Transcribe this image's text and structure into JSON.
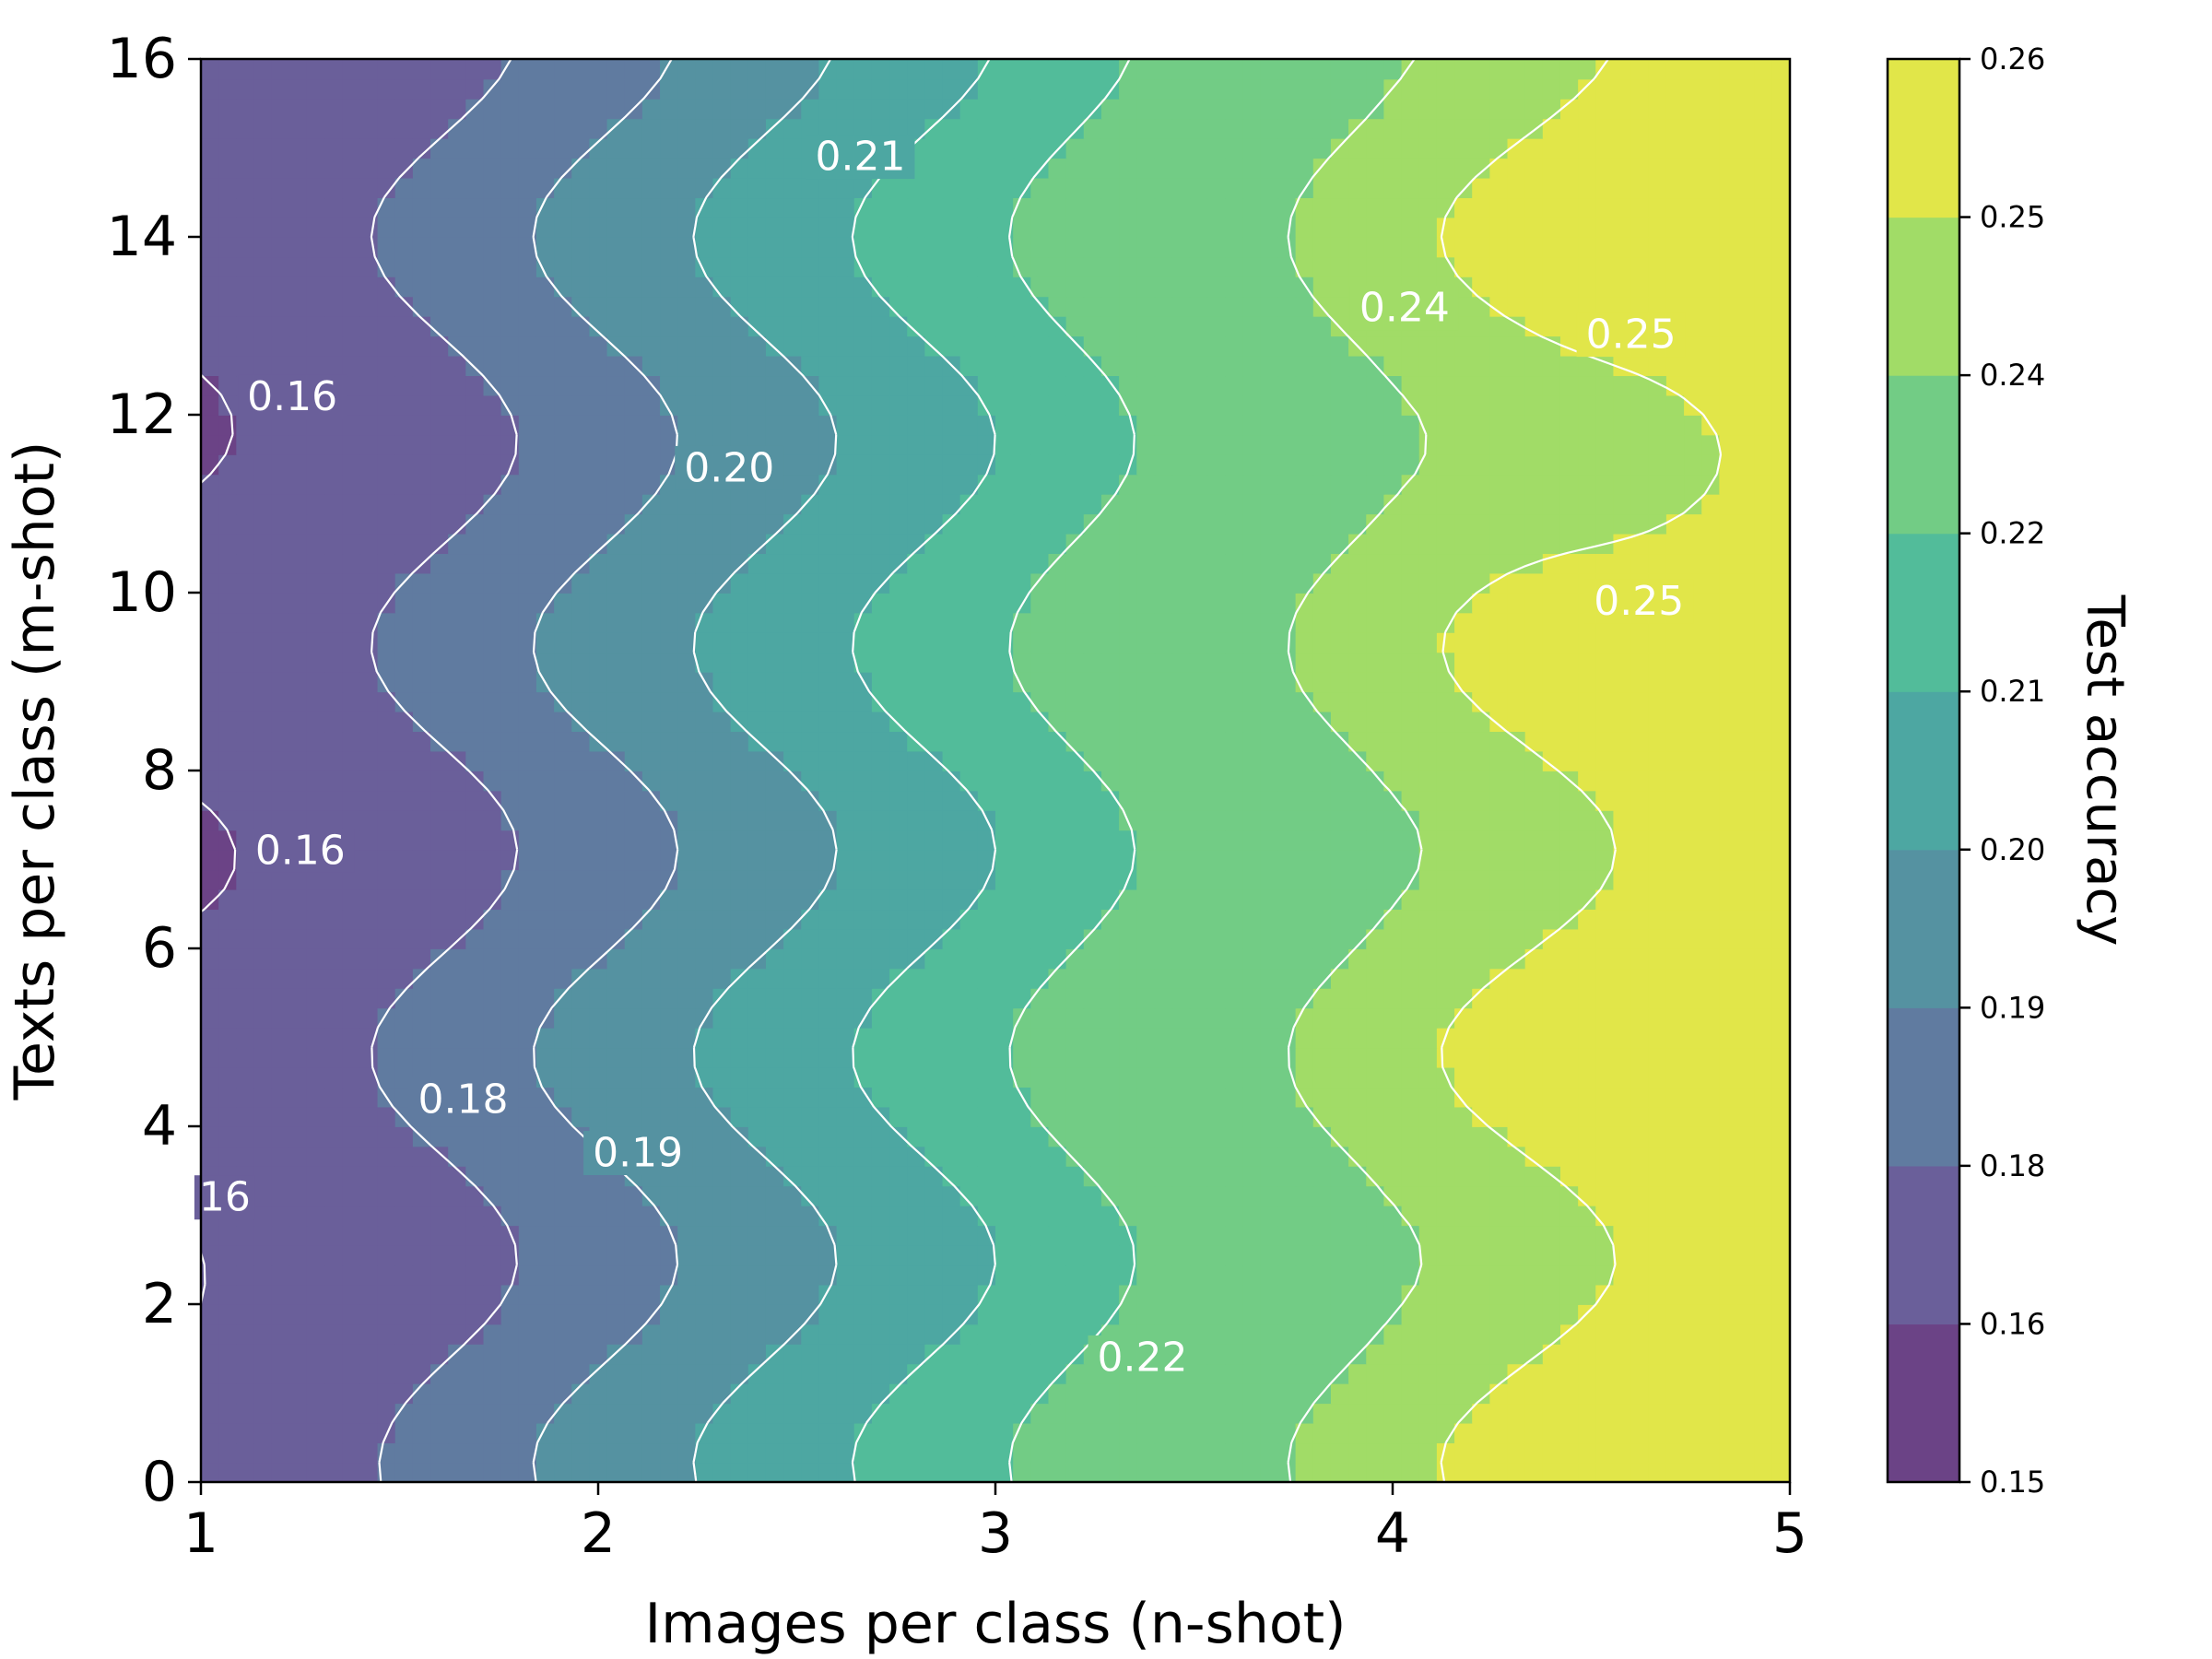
{
  "chart_data": {
    "type": "contour",
    "xlabel": "Images per class (n-shot)",
    "ylabel": "Texts per class (m-shot)",
    "colorbar_label": "Test accuracy",
    "xlim": [
      1,
      5
    ],
    "ylim": [
      0,
      16
    ],
    "xticks": [
      "1",
      "2",
      "3",
      "4",
      "5"
    ],
    "yticks": [
      "0",
      "2",
      "4",
      "6",
      "8",
      "10",
      "12",
      "14",
      "16"
    ],
    "colorbar_ticks": [
      "0.15",
      "0.16",
      "0.18",
      "0.19",
      "0.20",
      "0.21",
      "0.22",
      "0.24",
      "0.25",
      "0.26"
    ],
    "levels": [
      0.15,
      0.16,
      0.18,
      0.19,
      0.2,
      0.21,
      0.22,
      0.24,
      0.25,
      0.26
    ],
    "colormap": "viridis",
    "band_colors": [
      "#6b4386",
      "#6a5f9a",
      "#607ba0",
      "#5592a1",
      "#4da7a2",
      "#52bc9a",
      "#72cc85",
      "#a1dc67",
      "#e1e649"
    ],
    "contour_labels": [
      {
        "text": "0.16",
        "x": 1.23,
        "y": 12.2
      },
      {
        "text": "0.16",
        "x": 1.25,
        "y": 7.1
      },
      {
        "text": "16",
        "x": 1.06,
        "y": 3.2
      },
      {
        "text": "0.18",
        "x": 1.66,
        "y": 4.3
      },
      {
        "text": "0.19",
        "x": 2.1,
        "y": 3.7
      },
      {
        "text": "0.20",
        "x": 2.33,
        "y": 11.4
      },
      {
        "text": "0.21",
        "x": 2.66,
        "y": 14.9
      },
      {
        "text": "0.22",
        "x": 3.37,
        "y": 1.4
      },
      {
        "text": "0.24",
        "x": 4.03,
        "y": 13.2
      },
      {
        "text": "0.25",
        "x": 4.6,
        "y": 12.9
      },
      {
        "text": "0.25",
        "x": 4.62,
        "y": 9.9
      }
    ]
  }
}
